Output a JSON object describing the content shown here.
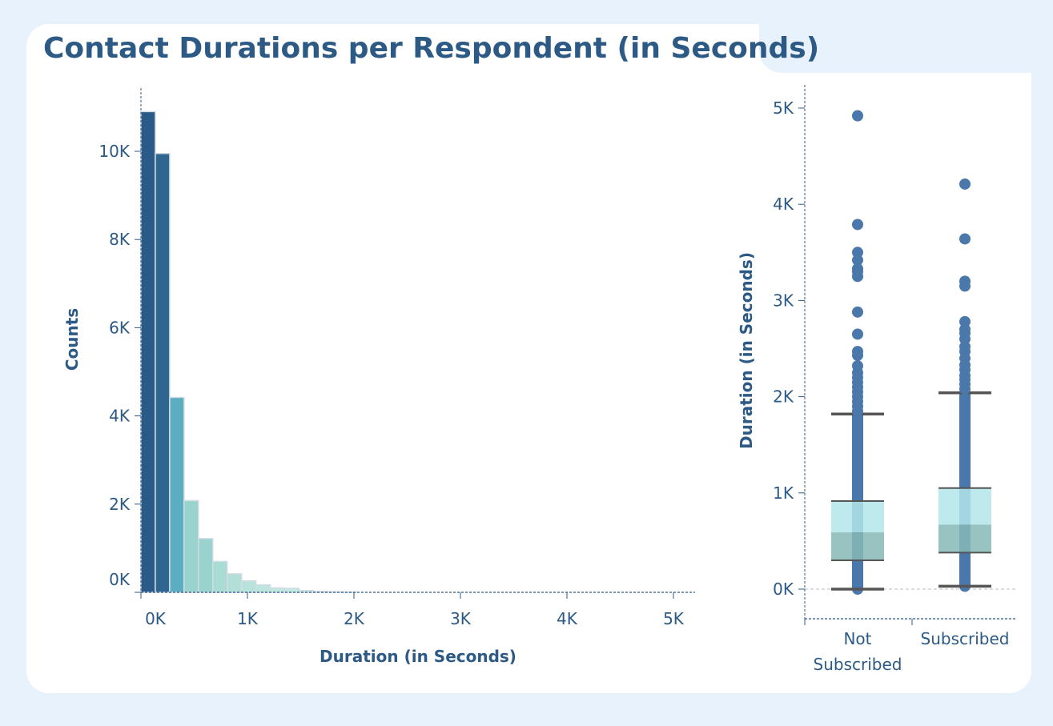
{
  "title": "Contact Durations per Respondent (in Seconds)",
  "chart_data": [
    {
      "type": "bar",
      "subtype": "histogram",
      "xlabel": "Duration (in Seconds)",
      "ylabel": "Counts",
      "x_ticks": [
        "0K",
        "1K",
        "2K",
        "3K",
        "4K",
        "5K"
      ],
      "y_ticks": [
        "0K",
        "2K",
        "4K",
        "6K",
        "8K",
        "10K"
      ],
      "xlim": [
        0,
        5200
      ],
      "ylim": [
        0,
        11400
      ],
      "bin_width": 135,
      "bins_start": [
        0,
        135,
        270,
        405,
        540,
        675,
        810,
        945,
        1080,
        1215,
        1350,
        1485,
        1620,
        1755,
        1890
      ],
      "values": [
        10900,
        9950,
        4420,
        2080,
        1220,
        700,
        420,
        260,
        170,
        100,
        90,
        40,
        20,
        10,
        5
      ],
      "colors": [
        "#2a5a88",
        "#2f6690",
        "#5aaebf",
        "#9ad3cd",
        "#9ad3cd",
        "#a8dcd4",
        "#b2e0d9",
        "#b7e3dc",
        "#bde6df",
        "#c0e8e1",
        "#c2e9e2",
        "#c8ece6",
        "#cceee8",
        "#cfefea",
        "#d2f0eb"
      ],
      "grid": false
    },
    {
      "type": "box",
      "ylabel": "Duration (in Seconds)",
      "y_ticks": [
        "0K",
        "1K",
        "2K",
        "3K",
        "4K",
        "5K"
      ],
      "ylim": [
        -100,
        5250
      ],
      "categories": [
        "Not\nSubscribed",
        "Subscribed"
      ],
      "boxes": [
        {
          "category": "Not Subscribed",
          "whisker_low": 0,
          "q1": 300,
          "median": 590,
          "q3": 915,
          "whisker_high": 1820,
          "min_point": 0,
          "outliers": [
            1850,
            1900,
            1950,
            2000,
            2050,
            2100,
            2150,
            2200,
            2250,
            2320,
            2430,
            2470,
            2650,
            2880,
            3250,
            3300,
            3330,
            3420,
            3500,
            3790,
            4920
          ]
        },
        {
          "category": "Subscribed",
          "whisker_low": 30,
          "q1": 380,
          "median": 670,
          "q3": 1050,
          "whisker_high": 2040,
          "min_point": 30,
          "outliers": [
            2080,
            2130,
            2180,
            2220,
            2280,
            2330,
            2400,
            2470,
            2520,
            2600,
            2660,
            2700,
            2780,
            3150,
            3200,
            3640,
            4210
          ]
        }
      ],
      "colors": {
        "point": "#4a78aa",
        "box_upper": "#b3e6ea",
        "box_lower": "#86b9b6",
        "whisker_cap": "#555555"
      },
      "grid": false
    }
  ]
}
